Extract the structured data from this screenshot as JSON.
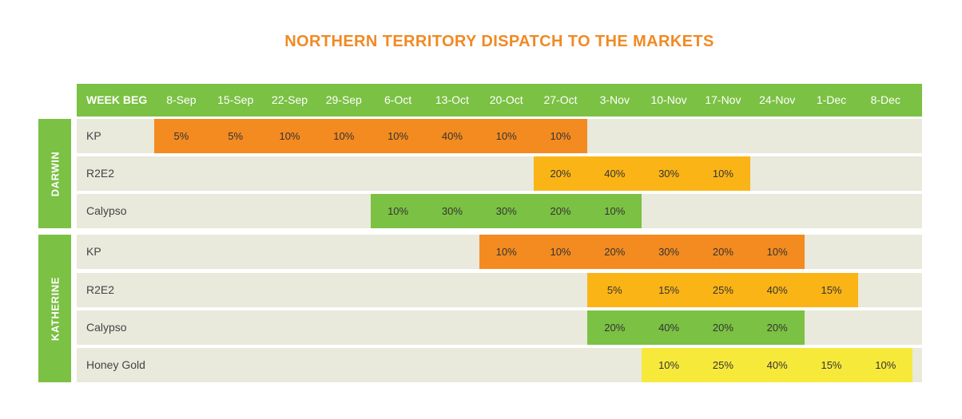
{
  "title": "NORTHERN TERRITORY DISPATCH TO THE MARKETS",
  "chart_data": {
    "type": "table",
    "title": "NORTHERN TERRITORY DISPATCH TO THE MARKETS",
    "header_label": "WEEK BEG",
    "weeks": [
      "8-Sep",
      "15-Sep",
      "22-Sep",
      "29-Sep",
      "6-Oct",
      "13-Oct",
      "20-Oct",
      "27-Oct",
      "3-Nov",
      "10-Nov",
      "17-Nov",
      "24-Nov",
      "1-Dec",
      "8-Dec"
    ],
    "varieties": {
      "KP": "#f38b20",
      "R2E2": "#fbb416",
      "Calypso": "#7bc144",
      "Honey Gold": "#f7e93a"
    },
    "groups": [
      {
        "region": "DARWIN",
        "rows": [
          {
            "variety": "KP",
            "start": 0,
            "values": [
              "5%",
              "5%",
              "10%",
              "10%",
              "10%",
              "40%",
              "10%",
              "10%"
            ]
          },
          {
            "variety": "R2E2",
            "start": 7,
            "values": [
              "20%",
              "40%",
              "30%",
              "10%"
            ]
          },
          {
            "variety": "Calypso",
            "start": 4,
            "values": [
              "10%",
              "30%",
              "30%",
              "20%",
              "10%"
            ]
          }
        ]
      },
      {
        "region": "KATHERINE",
        "rows": [
          {
            "variety": "KP",
            "start": 6,
            "values": [
              "10%",
              "10%",
              "20%",
              "30%",
              "20%",
              "10%"
            ]
          },
          {
            "variety": "R2E2",
            "start": 8,
            "values": [
              "5%",
              "15%",
              "25%",
              "40%",
              "15%"
            ]
          },
          {
            "variety": "Calypso",
            "start": 8,
            "values": [
              "20%",
              "40%",
              "20%",
              "20%"
            ]
          },
          {
            "variety": "Honey Gold",
            "start": 9,
            "values": [
              "10%",
              "25%",
              "40%",
              "15%",
              "10%"
            ]
          }
        ]
      }
    ]
  }
}
